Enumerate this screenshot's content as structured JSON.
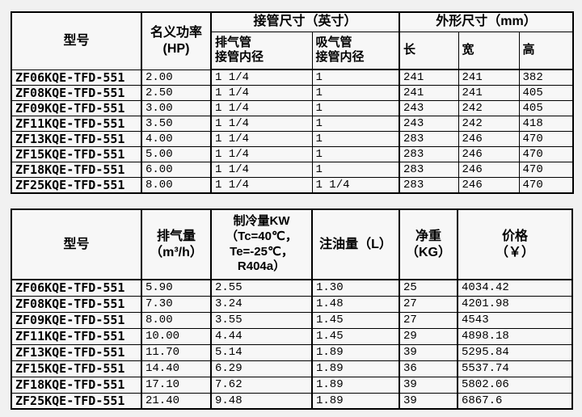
{
  "page": {
    "background_color": "#f1f1f1",
    "cell_background_color": "#f7f7f7",
    "border_color": "#000000"
  },
  "table1": {
    "headers": {
      "model": "型号",
      "power": "名义功率\n(HP)",
      "pipe_group": "接管尺寸（英寸）",
      "discharge": "排气管\n接管内径",
      "suction": "吸气管\n接管内径",
      "dim_group": "外形尺寸（mm）",
      "length": "长",
      "width": "宽",
      "height": "高"
    },
    "rows": [
      {
        "model": "ZF06KQE-TFD-551",
        "power": "2.00",
        "discharge": "1 1/4",
        "suction": "1",
        "length": "241",
        "width": "241",
        "height": "382"
      },
      {
        "model": "ZF08KQE-TFD-551",
        "power": "2.50",
        "discharge": "1 1/4",
        "suction": "1",
        "length": "241",
        "width": "241",
        "height": "405"
      },
      {
        "model": "ZF09KQE-TFD-551",
        "power": "3.00",
        "discharge": "1 1/4",
        "suction": "1",
        "length": "243",
        "width": "242",
        "height": "405"
      },
      {
        "model": "ZF11KQE-TFD-551",
        "power": "3.50",
        "discharge": "1 1/4",
        "suction": "1",
        "length": "243",
        "width": "242",
        "height": "418"
      },
      {
        "model": "ZF13KQE-TFD-551",
        "power": "4.00",
        "discharge": "1 1/4",
        "suction": "1",
        "length": "283",
        "width": "246",
        "height": "470"
      },
      {
        "model": "ZF15KQE-TFD-551",
        "power": "5.00",
        "discharge": "1 1/4",
        "suction": "1",
        "length": "283",
        "width": "246",
        "height": "470"
      },
      {
        "model": "ZF18KQE-TFD-551",
        "power": "6.00",
        "discharge": "1 1/4",
        "suction": "1",
        "length": "283",
        "width": "246",
        "height": "470"
      },
      {
        "model": "ZF25KQE-TFD-551",
        "power": "8.00",
        "discharge": "1 1/4",
        "suction": "1 1/4",
        "length": "283",
        "width": "246",
        "height": "470"
      }
    ]
  },
  "table2": {
    "headers": {
      "model": "型号",
      "displacement": "排气量\n（m³/h）",
      "cooling": "制冷量KW\n（Tc=40℃，\nTe=-25℃，\nR404a）",
      "oil": "注油量（L）",
      "weight": "净重\n（KG）",
      "price": "价格\n（￥）"
    },
    "rows": [
      {
        "model": "ZF06KQE-TFD-551",
        "displacement": "5.90",
        "cooling": "2.55",
        "oil": "1.30",
        "weight": "25",
        "price": "4034.42"
      },
      {
        "model": "ZF08KQE-TFD-551",
        "displacement": "7.30",
        "cooling": "3.24",
        "oil": "1.48",
        "weight": "27",
        "price": "4201.98"
      },
      {
        "model": "ZF09KQE-TFD-551",
        "displacement": "8.00",
        "cooling": "3.55",
        "oil": "1.45",
        "weight": "27",
        "price": "4543"
      },
      {
        "model": "ZF11KQE-TFD-551",
        "displacement": "10.00",
        "cooling": "4.44",
        "oil": "1.45",
        "weight": "29",
        "price": "4898.18"
      },
      {
        "model": "ZF13KQE-TFD-551",
        "displacement": "11.70",
        "cooling": "5.14",
        "oil": "1.89",
        "weight": "39",
        "price": "5295.84"
      },
      {
        "model": "ZF15KQE-TFD-551",
        "displacement": "14.40",
        "cooling": "6.29",
        "oil": "1.89",
        "weight": "36",
        "price": "5537.74"
      },
      {
        "model": "ZF18KQE-TFD-551",
        "displacement": "17.10",
        "cooling": "7.62",
        "oil": "1.89",
        "weight": "39",
        "price": "5802.06"
      },
      {
        "model": "ZF25KQE-TFD-551",
        "displacement": "21.40",
        "cooling": "9.48",
        "oil": "1.89",
        "weight": "39",
        "price": "6867.6"
      }
    ]
  }
}
